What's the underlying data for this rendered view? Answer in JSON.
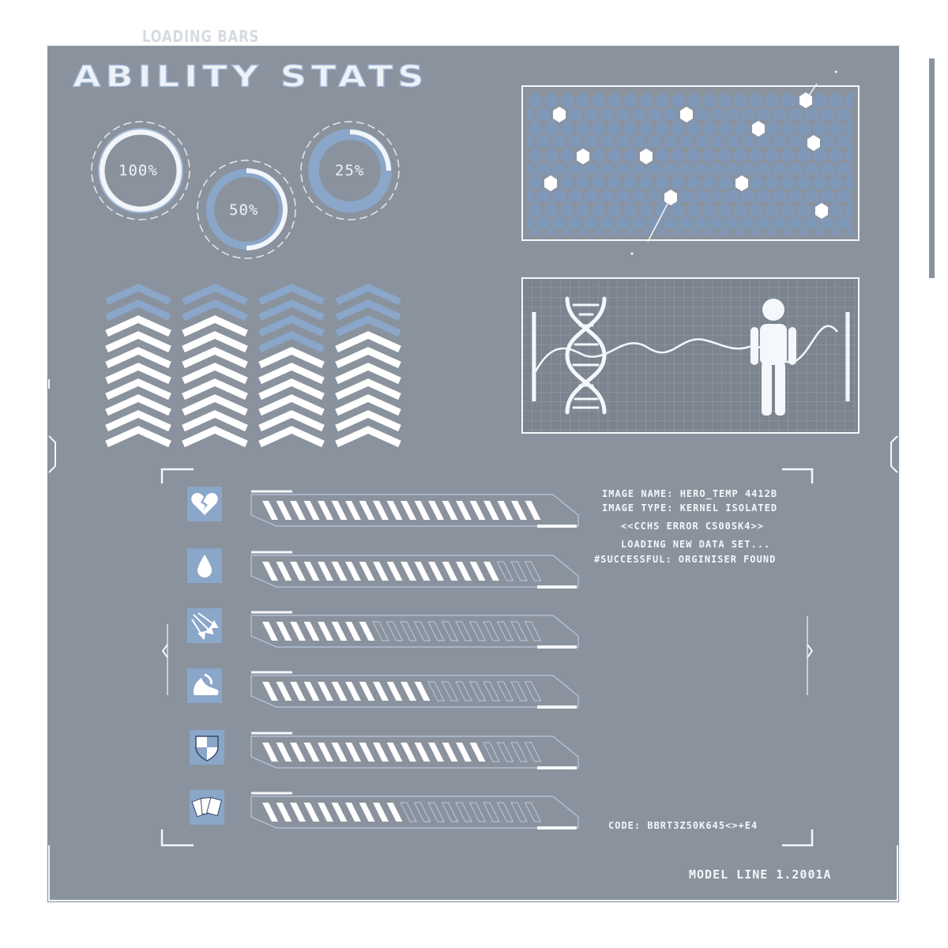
{
  "header": {
    "top_label": "LOADING BARS",
    "title": "ABILITY STATS"
  },
  "rings": [
    {
      "label": "100%",
      "progress": 1.0
    },
    {
      "label": "50%",
      "progress": 0.5
    },
    {
      "label": "25%",
      "progress": 0.25
    }
  ],
  "chevron_columns": [
    {
      "highlight_count": 2
    },
    {
      "highlight_count": 2
    },
    {
      "highlight_count": 4
    },
    {
      "highlight_count": 3
    }
  ],
  "console": {
    "image_name": "IMAGE NAME:  HERO_TEMP 4412B",
    "image_type": "IMAGE TYPE: KERNEL ISOLATED",
    "error": "<<CCHS ERROR CS00SK4>>",
    "loading": "LOADING NEW DATA SET...",
    "success": "#SUCCESSFUL: ORGINISER FOUND",
    "code": "CODE: BBRT3Z50K645<>+E4"
  },
  "footer": {
    "model_line": "MODEL LINE 1.2001A"
  },
  "stats": [
    {
      "icon": "broken-heart-icon",
      "progress": 1.0
    },
    {
      "icon": "water-drop-icon",
      "progress": 0.85
    },
    {
      "icon": "arrows-icon",
      "progress": 0.4
    },
    {
      "icon": "running-shoe-icon",
      "progress": 0.6
    },
    {
      "icon": "shield-icon",
      "progress": 0.8
    },
    {
      "icon": "playing-cards-icon",
      "progress": 0.5
    }
  ],
  "colors": {
    "panel": "#8a929d",
    "accent_blue": "#8aa6c9",
    "hex_fill": "#7f98b8",
    "white": "#f4f7fb"
  }
}
